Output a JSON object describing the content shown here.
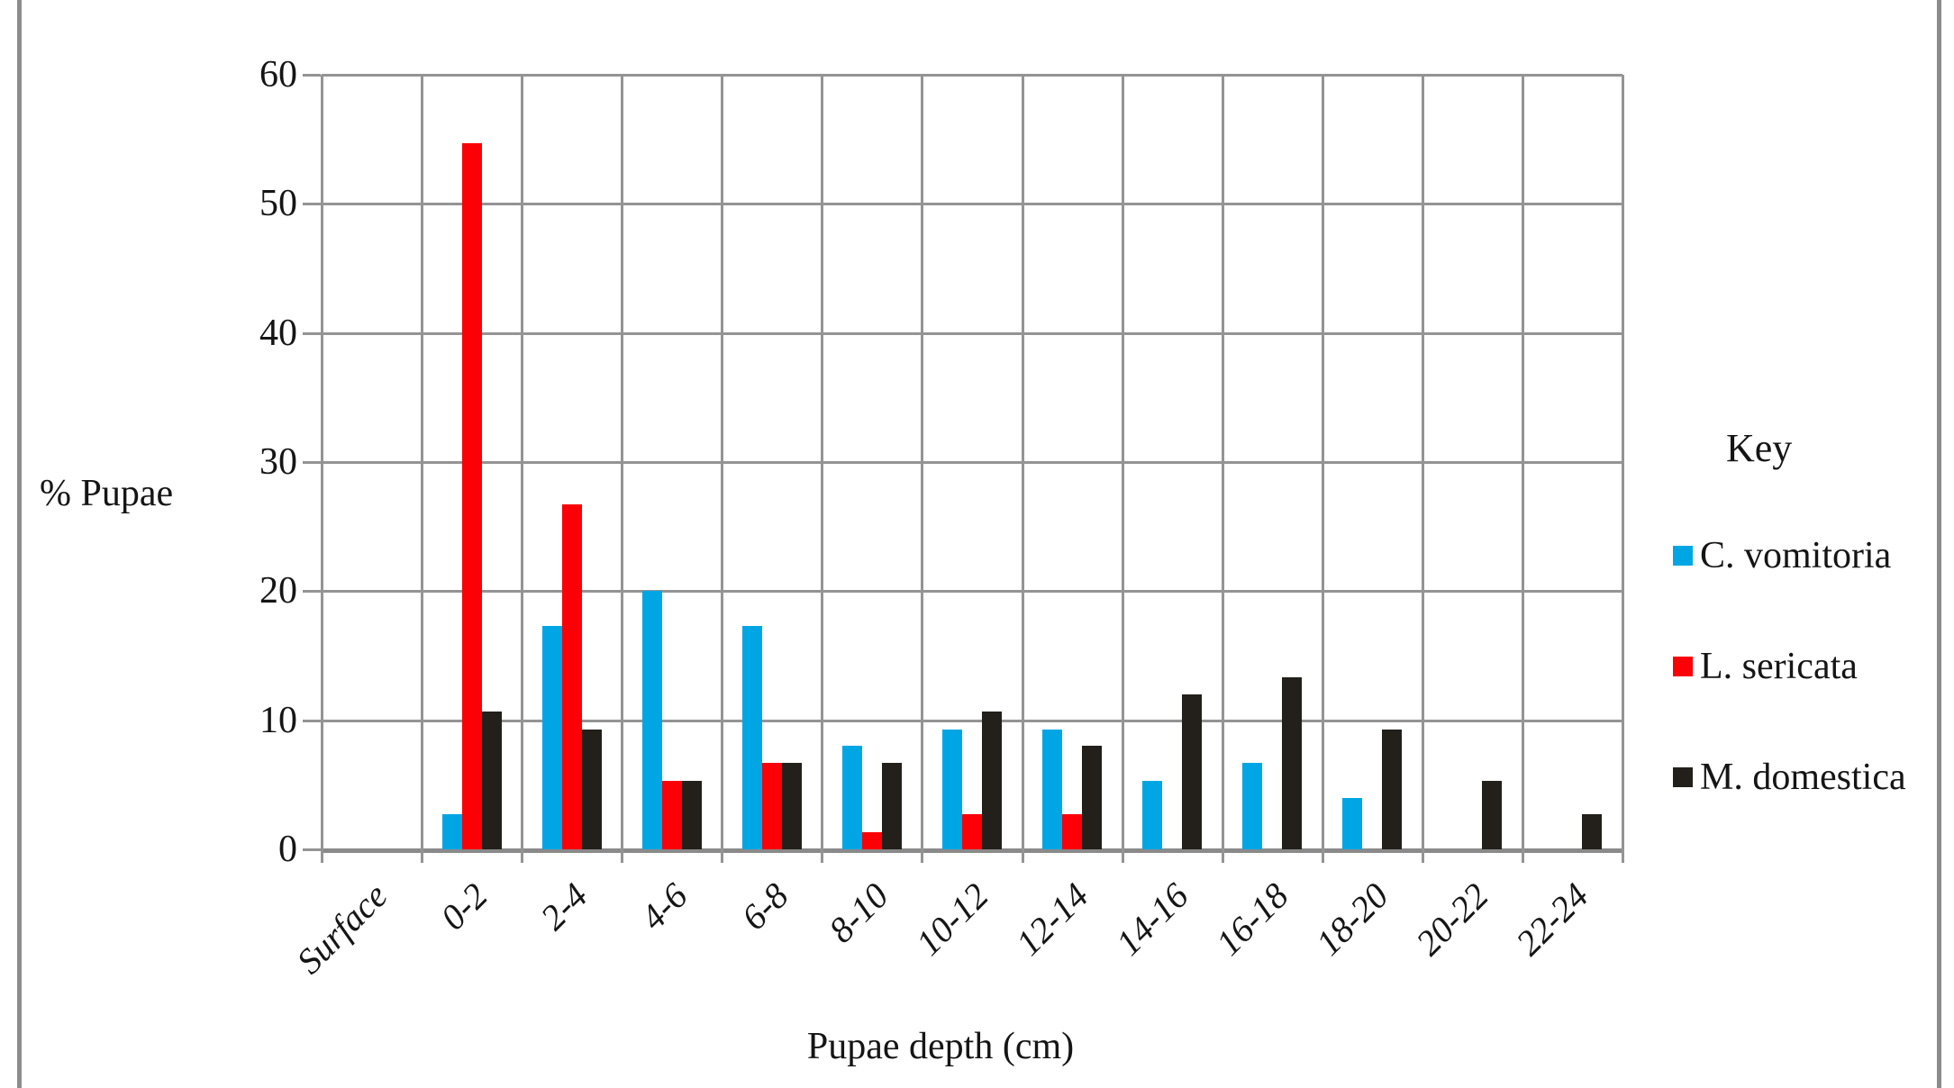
{
  "page": {
    "background": "#ffffff",
    "border_color": "#8c8c8c",
    "gridline_color": "#949494"
  },
  "y_axis": {
    "title": "% Pupae",
    "ticks": [
      0,
      10,
      20,
      30,
      40,
      50,
      60
    ]
  },
  "x_axis": {
    "title": "Pupae depth (cm)"
  },
  "legend": {
    "title": "Key"
  },
  "chart_data": {
    "type": "bar",
    "title": "",
    "xlabel": "Pupae depth (cm)",
    "ylabel": "% Pupae",
    "ylim": [
      0,
      60
    ],
    "grid": true,
    "legend_position": "right",
    "categories": [
      "Surface",
      "0-2",
      "2-4",
      "4-6",
      "6-8",
      "8-10",
      "10-12",
      "12-14",
      "14-16",
      "16-18",
      "18-20",
      "20-22",
      "22-24"
    ],
    "series": [
      {
        "name": "C. vomitoria",
        "color": "#00A6E4",
        "values": [
          0,
          2.7,
          17.3,
          20,
          17.3,
          8,
          9.3,
          9.3,
          5.3,
          6.7,
          4,
          0,
          0
        ]
      },
      {
        "name": "L. sericata",
        "color": "#FB0006",
        "values": [
          0,
          54.7,
          26.7,
          5.3,
          6.7,
          1.3,
          2.7,
          2.7,
          0,
          0,
          0,
          0,
          0
        ]
      },
      {
        "name": "M. domestica",
        "color": "#23201B",
        "values": [
          0,
          10.7,
          9.3,
          5.3,
          6.7,
          6.7,
          10.7,
          8,
          12,
          13.3,
          9.3,
          5.3,
          2.7
        ]
      }
    ]
  }
}
